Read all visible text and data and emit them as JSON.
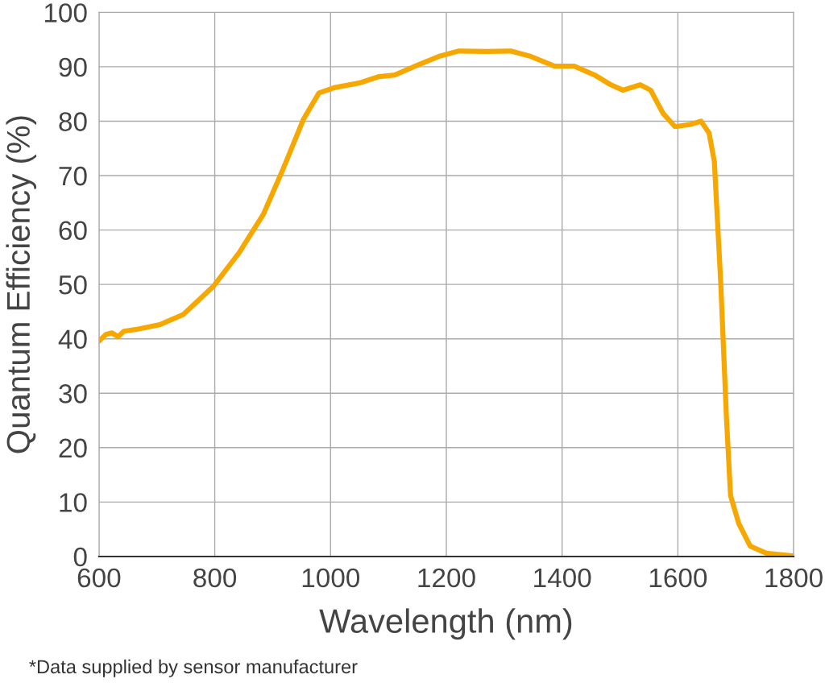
{
  "chart_data": {
    "type": "line",
    "xlabel": "Wavelength (nm)",
    "ylabel": "Quantum Efficiency (%)",
    "annotations": [
      "*Data supplied by sensor manufacturer"
    ],
    "series": [
      {
        "color": "#f7a800",
        "x": [
          600,
          612,
          622,
          633,
          643,
          663,
          705,
          746,
          798,
          842,
          884,
          918,
          953,
          980,
          1008,
          1049,
          1084,
          1111,
          1146,
          1187,
          1222,
          1270,
          1311,
          1346,
          1387,
          1421,
          1456,
          1484,
          1505,
          1535,
          1553,
          1574,
          1595,
          1622,
          1640,
          1654,
          1663,
          1674,
          1684,
          1691,
          1705,
          1725,
          1753,
          1800
        ],
        "values": [
          39.6,
          40.8,
          41.1,
          40.4,
          41.4,
          41.7,
          42.6,
          44.5,
          49.7,
          55.8,
          62.9,
          71.2,
          80.3,
          85.2,
          86.2,
          87.0,
          88.2,
          88.5,
          90.1,
          91.9,
          92.9,
          92.8,
          92.9,
          91.9,
          90.1,
          90.1,
          88.5,
          86.7,
          85.7,
          86.7,
          85.7,
          81.5,
          79.0,
          79.4,
          80.0,
          77.8,
          72.6,
          50.4,
          25.3,
          11.2,
          6.1,
          1.9,
          0.6,
          0.1
        ]
      }
    ],
    "xlim": [
      600,
      1800
    ],
    "xticks": [
      600,
      800,
      1000,
      1200,
      1400,
      1600,
      1800
    ],
    "ylim": [
      0,
      100
    ],
    "yticks": [
      0,
      10,
      20,
      30,
      40,
      50,
      60,
      70,
      80,
      90,
      100
    ],
    "grid": true,
    "marker": "none",
    "line_style": "solid"
  }
}
